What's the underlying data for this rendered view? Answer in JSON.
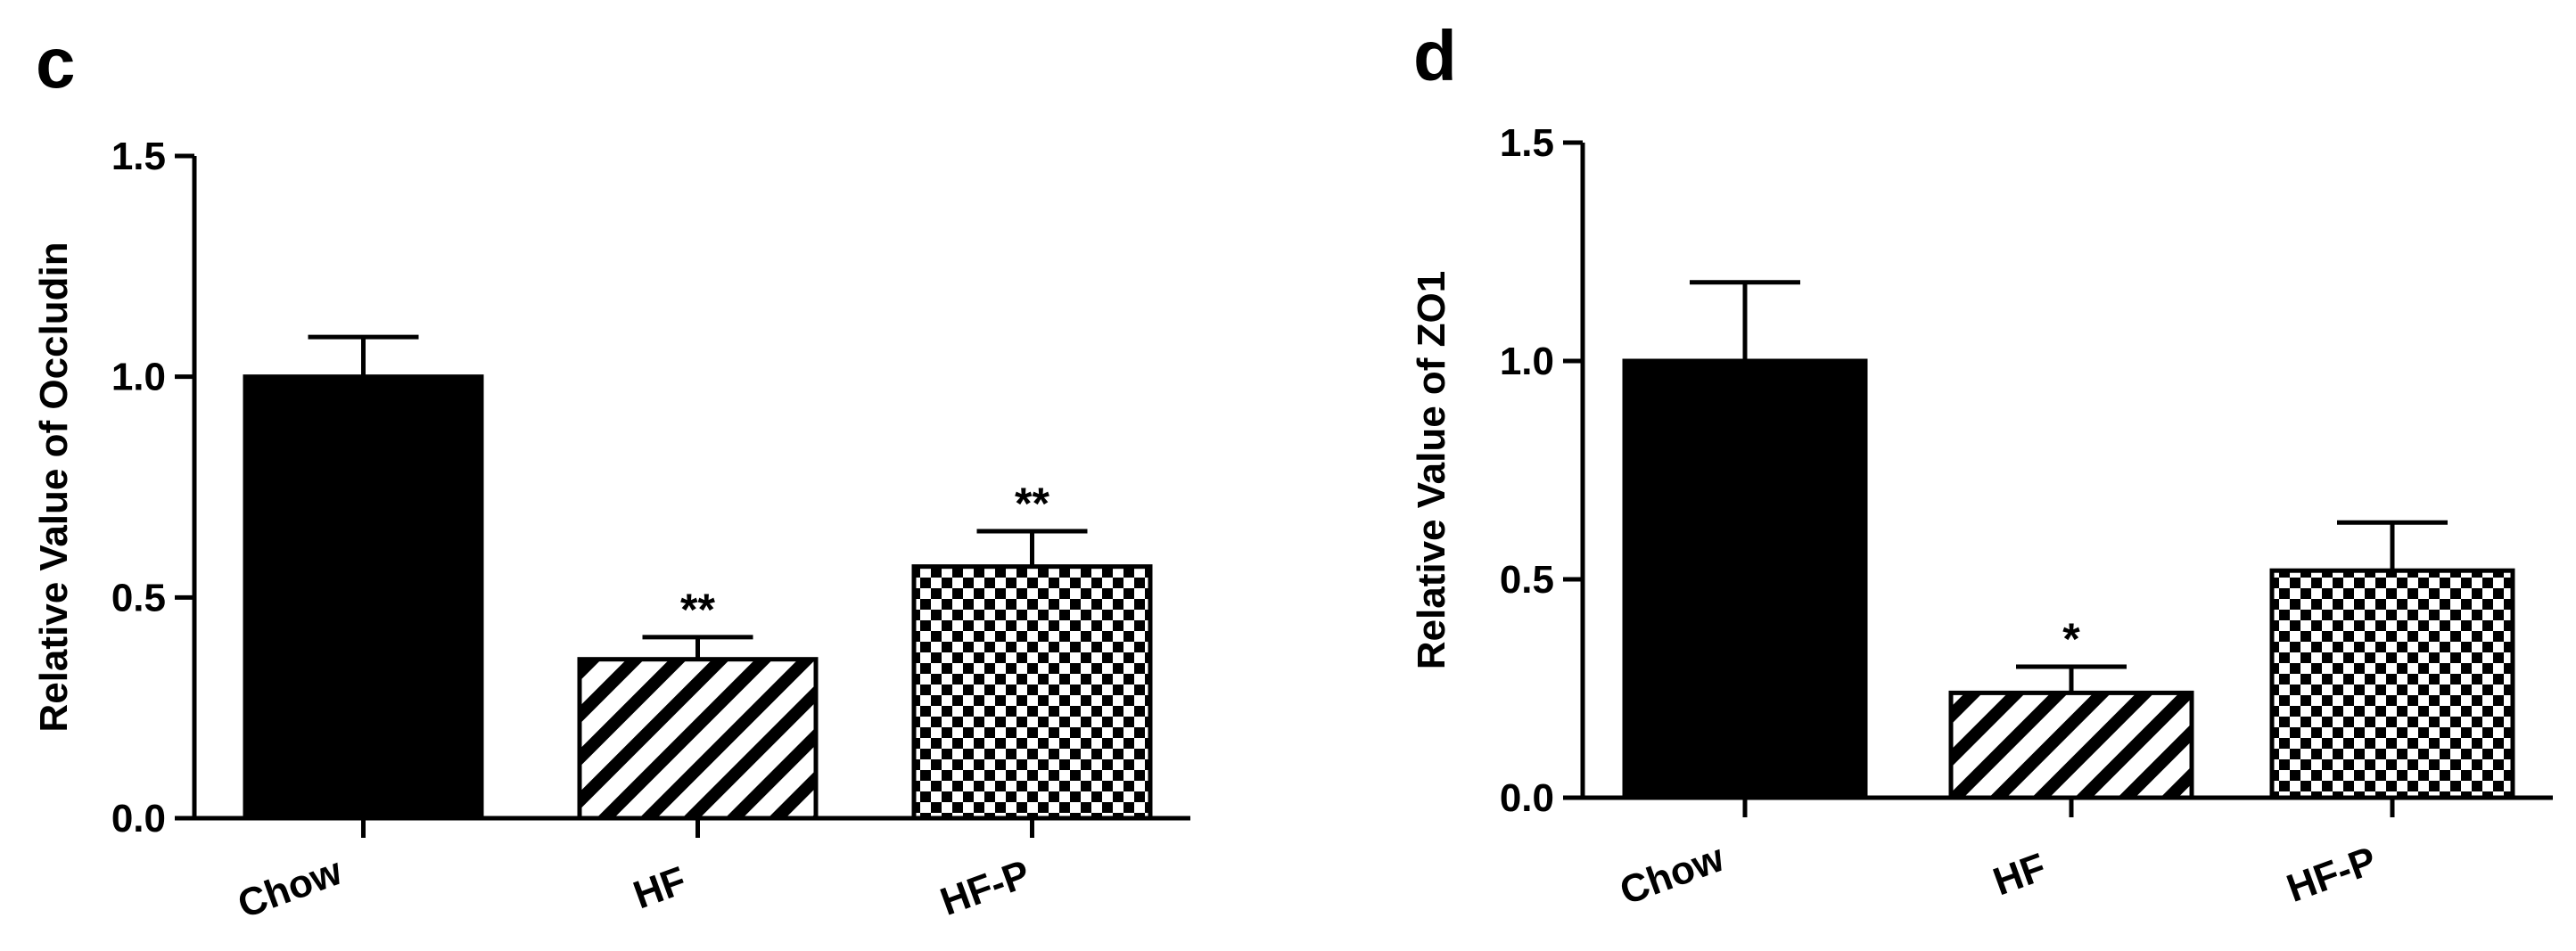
{
  "chart_data": [
    {
      "type": "bar",
      "panel_label": "c",
      "categories": [
        "Chow",
        "HF",
        "HF-P"
      ],
      "values": [
        1.0,
        0.36,
        0.57
      ],
      "errors": [
        0.09,
        0.05,
        0.08
      ],
      "significance": [
        "",
        "**",
        "**"
      ],
      "patterns": [
        "solid",
        "diagonal",
        "checker"
      ],
      "ylabel": "Relative Value of Occludin",
      "ylim": [
        0,
        1.5
      ],
      "yticks": [
        0.0,
        0.5,
        1.0,
        1.5
      ],
      "ytick_labels": [
        "0.0",
        "0.5",
        "1.0",
        "1.5"
      ],
      "grid": false,
      "colors": {
        "bar": "#000000",
        "background": "#ffffff"
      }
    },
    {
      "type": "bar",
      "panel_label": "d",
      "categories": [
        "Chow",
        "HF",
        "HF-P"
      ],
      "values": [
        1.0,
        0.24,
        0.52
      ],
      "errors": [
        0.18,
        0.06,
        0.11
      ],
      "significance": [
        "",
        "*",
        ""
      ],
      "patterns": [
        "solid",
        "diagonal",
        "checker"
      ],
      "ylabel": "Relative Value of ZO1",
      "ylim": [
        0,
        1.5
      ],
      "yticks": [
        0.0,
        0.5,
        1.0,
        1.5
      ],
      "ytick_labels": [
        "0.0",
        "0.5",
        "1.0",
        "1.5"
      ],
      "grid": false,
      "colors": {
        "bar": "#000000",
        "background": "#ffffff"
      }
    }
  ]
}
